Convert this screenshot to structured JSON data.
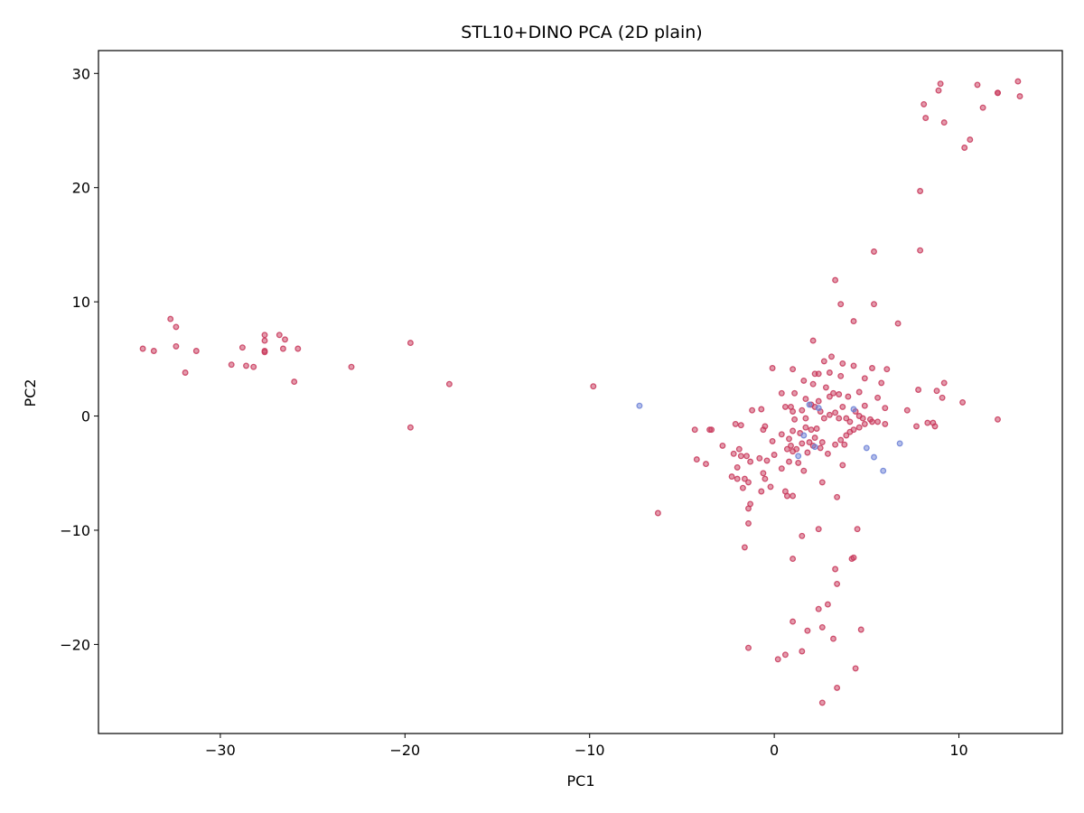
{
  "chart_data": {
    "type": "scatter",
    "title": "STL10+DINO PCA (2D plain)",
    "xlabel": "PC1",
    "ylabel": "PC2",
    "xlim": [
      -36.6,
      15.6
    ],
    "ylim": [
      -27.8,
      32.0
    ],
    "xticks": [
      -30,
      -20,
      -10,
      0,
      10
    ],
    "yticks": [
      -20,
      -10,
      0,
      10,
      20,
      30
    ],
    "grid": false,
    "legend": "none",
    "series": [
      {
        "color": "#c8375a",
        "points": [
          [
            -34.2,
            5.9
          ],
          [
            -33.6,
            5.7
          ],
          [
            -32.7,
            8.5
          ],
          [
            -32.4,
            7.8
          ],
          [
            -32.4,
            6.1
          ],
          [
            -31.9,
            3.8
          ],
          [
            -31.3,
            5.7
          ],
          [
            -29.4,
            4.5
          ],
          [
            -28.8,
            6.0
          ],
          [
            -28.6,
            4.4
          ],
          [
            -28.2,
            4.3
          ],
          [
            -27.6,
            7.1
          ],
          [
            -27.6,
            6.6
          ],
          [
            -27.6,
            5.6
          ],
          [
            -27.6,
            5.7
          ],
          [
            -26.8,
            7.1
          ],
          [
            -26.6,
            5.9
          ],
          [
            -26.5,
            6.7
          ],
          [
            -26.0,
            3.0
          ],
          [
            -25.8,
            5.9
          ],
          [
            -22.9,
            4.3
          ],
          [
            -19.7,
            6.4
          ],
          [
            -19.7,
            -1.0
          ],
          [
            -17.6,
            2.8
          ],
          [
            -9.8,
            2.6
          ],
          [
            -6.3,
            -8.5
          ],
          [
            8.1,
            27.3
          ],
          [
            8.2,
            26.1
          ],
          [
            8.9,
            28.5
          ],
          [
            9.0,
            29.1
          ],
          [
            9.2,
            25.7
          ],
          [
            10.3,
            23.5
          ],
          [
            10.6,
            24.2
          ],
          [
            11.0,
            29.0
          ],
          [
            11.3,
            27.0
          ],
          [
            12.1,
            28.3
          ],
          [
            12.1,
            28.3
          ],
          [
            13.2,
            29.3
          ],
          [
            13.3,
            28.0
          ],
          [
            7.9,
            19.7
          ],
          [
            5.4,
            14.4
          ],
          [
            7.9,
            14.5
          ],
          [
            3.3,
            11.9
          ],
          [
            3.6,
            9.8
          ],
          [
            5.4,
            9.8
          ],
          [
            4.3,
            8.3
          ],
          [
            6.7,
            8.1
          ],
          [
            2.1,
            6.6
          ],
          [
            3.1,
            5.2
          ],
          [
            2.7,
            4.8
          ],
          [
            3.7,
            4.6
          ],
          [
            4.3,
            4.4
          ],
          [
            5.3,
            4.2
          ],
          [
            6.1,
            4.1
          ],
          [
            -0.1,
            4.2
          ],
          [
            1.0,
            4.1
          ],
          [
            1.6,
            3.1
          ],
          [
            2.2,
            3.7
          ],
          [
            2.4,
            3.7
          ],
          [
            3.0,
            3.8
          ],
          [
            3.6,
            3.5
          ],
          [
            4.9,
            3.3
          ],
          [
            5.8,
            2.9
          ],
          [
            7.8,
            2.3
          ],
          [
            8.8,
            2.2
          ],
          [
            9.2,
            2.9
          ],
          [
            9.1,
            1.6
          ],
          [
            10.2,
            1.2
          ],
          [
            12.1,
            -0.3
          ],
          [
            2.1,
            2.8
          ],
          [
            2.8,
            2.5
          ],
          [
            3.2,
            2.0
          ],
          [
            4.6,
            2.1
          ],
          [
            0.4,
            2.0
          ],
          [
            1.1,
            2.0
          ],
          [
            1.7,
            1.5
          ],
          [
            2.4,
            1.3
          ],
          [
            3.0,
            1.7
          ],
          [
            3.5,
            1.9
          ],
          [
            4.0,
            1.7
          ],
          [
            5.6,
            1.6
          ],
          [
            6.0,
            0.7
          ],
          [
            4.9,
            0.9
          ],
          [
            4.4,
            0.4
          ],
          [
            4.6,
            0.0
          ],
          [
            5.2,
            -0.3
          ],
          [
            5.6,
            -0.5
          ],
          [
            6.0,
            -0.7
          ],
          [
            5.3,
            -0.5
          ],
          [
            4.9,
            -0.7
          ],
          [
            4.8,
            -0.2
          ],
          [
            7.2,
            0.5
          ],
          [
            7.7,
            -0.9
          ],
          [
            8.3,
            -0.6
          ],
          [
            8.6,
            -0.6
          ],
          [
            8.7,
            -0.9
          ],
          [
            3.3,
            0.3
          ],
          [
            3.7,
            0.8
          ],
          [
            2.2,
            0.8
          ],
          [
            2.0,
            1.0
          ],
          [
            1.5,
            0.5
          ],
          [
            0.9,
            0.8
          ],
          [
            0.6,
            0.8
          ],
          [
            -0.7,
            0.6
          ],
          [
            -1.2,
            0.5
          ],
          [
            1.0,
            0.4
          ],
          [
            1.1,
            -0.3
          ],
          [
            1.7,
            -0.2
          ],
          [
            2.5,
            0.4
          ],
          [
            2.7,
            -0.2
          ],
          [
            3.0,
            0.1
          ],
          [
            3.5,
            -0.2
          ],
          [
            3.9,
            -0.2
          ],
          [
            4.1,
            -0.5
          ],
          [
            4.3,
            -1.2
          ],
          [
            4.6,
            -1.0
          ],
          [
            2.3,
            -1.1
          ],
          [
            2.0,
            -1.2
          ],
          [
            1.7,
            -1.0
          ],
          [
            1.4,
            -1.5
          ],
          [
            1.0,
            -1.3
          ],
          [
            0.4,
            -1.6
          ],
          [
            0.8,
            -2.0
          ],
          [
            0.9,
            -2.6
          ],
          [
            1.2,
            -2.9
          ],
          [
            1.5,
            -2.4
          ],
          [
            1.9,
            -2.3
          ],
          [
            2.2,
            -1.9
          ],
          [
            2.6,
            -2.3
          ],
          [
            2.5,
            -2.8
          ],
          [
            3.3,
            -2.5
          ],
          [
            3.6,
            -2.1
          ],
          [
            3.9,
            -1.7
          ],
          [
            4.1,
            -1.4
          ],
          [
            -0.5,
            -0.9
          ],
          [
            -1.8,
            -0.8
          ],
          [
            -2.1,
            -0.7
          ],
          [
            -3.4,
            -1.2
          ],
          [
            -3.5,
            -1.2
          ],
          [
            -4.3,
            -1.2
          ],
          [
            -0.6,
            -1.2
          ],
          [
            -0.1,
            -2.2
          ],
          [
            0.7,
            -2.9
          ],
          [
            1.0,
            -3.1
          ],
          [
            1.8,
            -3.2
          ],
          [
            2.1,
            -2.6
          ],
          [
            2.9,
            -3.3
          ],
          [
            3.8,
            -2.5
          ],
          [
            -2.8,
            -2.6
          ],
          [
            -2.2,
            -3.3
          ],
          [
            -1.9,
            -2.9
          ],
          [
            -1.8,
            -3.5
          ],
          [
            -1.5,
            -3.5
          ],
          [
            -1.3,
            -4.0
          ],
          [
            -0.8,
            -3.7
          ],
          [
            -0.4,
            -3.9
          ],
          [
            0.0,
            -3.4
          ],
          [
            0.4,
            -4.6
          ],
          [
            0.8,
            -4.0
          ],
          [
            1.3,
            -4.1
          ],
          [
            1.6,
            -4.8
          ],
          [
            -2.0,
            -4.5
          ],
          [
            -2.3,
            -5.3
          ],
          [
            -4.2,
            -3.8
          ],
          [
            -3.7,
            -4.2
          ],
          [
            -1.6,
            -5.5
          ],
          [
            -1.4,
            -5.8
          ],
          [
            -0.6,
            -5.0
          ],
          [
            -0.5,
            -5.5
          ],
          [
            -2.0,
            -5.5
          ],
          [
            -1.7,
            -6.3
          ],
          [
            -0.2,
            -6.2
          ],
          [
            0.6,
            -6.6
          ],
          [
            0.7,
            -7.0
          ],
          [
            1.0,
            -7.0
          ],
          [
            -0.7,
            -6.6
          ],
          [
            -1.3,
            -7.7
          ],
          [
            -1.4,
            -8.1
          ],
          [
            -1.4,
            -9.4
          ],
          [
            2.6,
            -5.8
          ],
          [
            3.4,
            -7.1
          ],
          [
            3.7,
            -4.3
          ],
          [
            -1.6,
            -11.5
          ],
          [
            1.5,
            -10.5
          ],
          [
            2.4,
            -9.9
          ],
          [
            4.5,
            -9.9
          ],
          [
            1.0,
            -12.5
          ],
          [
            4.2,
            -12.5
          ],
          [
            4.3,
            -12.4
          ],
          [
            3.3,
            -13.4
          ],
          [
            2.9,
            -16.5
          ],
          [
            3.4,
            -14.7
          ],
          [
            2.4,
            -16.9
          ],
          [
            1.0,
            -18.0
          ],
          [
            1.8,
            -18.8
          ],
          [
            2.6,
            -18.5
          ],
          [
            3.2,
            -19.5
          ],
          [
            4.7,
            -18.7
          ],
          [
            -1.4,
            -20.3
          ],
          [
            0.6,
            -20.9
          ],
          [
            1.5,
            -20.6
          ],
          [
            0.2,
            -21.3
          ],
          [
            4.4,
            -22.1
          ],
          [
            3.4,
            -23.8
          ],
          [
            2.6,
            -25.1
          ]
        ]
      },
      {
        "color": "#6b80d6",
        "points": [
          [
            -7.3,
            0.9
          ],
          [
            1.9,
            1.0
          ],
          [
            2.4,
            0.7
          ],
          [
            1.3,
            -3.5
          ],
          [
            1.6,
            -1.7
          ],
          [
            4.3,
            0.6
          ],
          [
            5.0,
            -2.8
          ],
          [
            5.4,
            -3.6
          ],
          [
            5.9,
            -4.8
          ],
          [
            6.8,
            -2.4
          ],
          [
            2.2,
            -2.7
          ]
        ]
      }
    ]
  }
}
